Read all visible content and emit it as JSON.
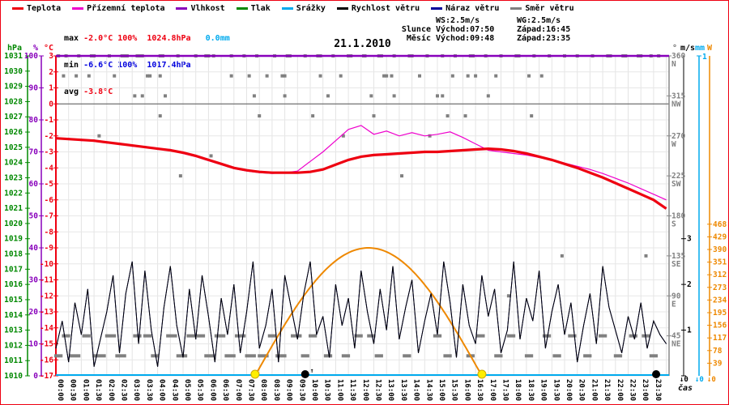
{
  "title": "21.1.2010",
  "legend": [
    {
      "label": "Teplota",
      "color": "#ee0011"
    },
    {
      "label": "Přízemní teplota",
      "color": "#ee00cc"
    },
    {
      "label": "Vlhkost",
      "color": "#8800bb"
    },
    {
      "label": "Tlak",
      "color": "#008800"
    },
    {
      "label": "Srážky",
      "color": "#00aaee"
    },
    {
      "label": "Rychlost větru",
      "color": "#000000"
    },
    {
      "label": "Náraz větru",
      "color": "#000099"
    },
    {
      "label": "Směr větru",
      "color": "#808080"
    }
  ],
  "stats": {
    "max": {
      "label": "max",
      "temp": "-2.0°C",
      "humidity": "100%",
      "pressure": "1024.8hPa",
      "precip": "0.0mm"
    },
    "min": {
      "label": "min",
      "temp": "-6.6°C",
      "humidity": "100%",
      "pressure": "1017.4hPa"
    },
    "avg": {
      "label": "avg",
      "temp": "-3.8°C"
    },
    "wind": {
      "ws": "WS:2.5m/s",
      "wg": "WG:2.5m/s"
    },
    "sun": {
      "label": "Slunce",
      "rise": "Východ:07:50",
      "set": "Západ:16:45"
    },
    "moon": {
      "label": "Měsíc",
      "rise": "Východ:09:48",
      "set": "Západ:23:35"
    }
  },
  "axes": {
    "hpa": {
      "unit": "hPa",
      "color": "#008800",
      "ticks": [
        1031,
        1030,
        1029,
        1028,
        1027,
        1026,
        1025,
        1024,
        1023,
        1022,
        1021,
        1020,
        1019,
        1018,
        1017,
        1016,
        1015,
        1014,
        1013,
        1012,
        1011,
        1010
      ]
    },
    "pct": {
      "unit": "%",
      "color": "#8800bb",
      "ticks": [
        100,
        90,
        80,
        70,
        60,
        50,
        40,
        30,
        20,
        10,
        0
      ]
    },
    "degc": {
      "unit": "°C",
      "color": "#ee0011",
      "ticks": [
        3,
        2,
        1,
        0,
        -1,
        -2,
        -3,
        -4,
        -5,
        -6,
        -7,
        -8,
        -9,
        -10,
        -11,
        -12,
        -13,
        -14,
        -15,
        -16,
        -17
      ]
    },
    "dir": {
      "unit": "°",
      "color": "#808080",
      "ticks": [
        [
          360,
          "N"
        ],
        [
          315,
          "NW"
        ],
        [
          270,
          "W"
        ],
        [
          225,
          "SW"
        ],
        [
          180,
          "S"
        ],
        [
          135,
          "SE"
        ],
        [
          90,
          "E"
        ],
        [
          45,
          "NE"
        ]
      ]
    },
    "ms": {
      "unit": "m/s",
      "color": "#000000",
      "ticks": [
        3,
        2,
        1,
        0
      ]
    },
    "mm": {
      "unit": "mm",
      "color": "#00aaee",
      "ticks": [
        1,
        0
      ]
    },
    "watt": {
      "unit": "W",
      "color": "#ee8800",
      "ticks": [
        468,
        429,
        390,
        351,
        312,
        273,
        234,
        195,
        156,
        117,
        78,
        39,
        0
      ]
    }
  },
  "bottom": {
    "axis_label": "čas",
    "zero_marker": "↓0",
    "moonrise_arrow": "↑",
    "time_labels": [
      "00:00",
      "00:30",
      "01:00",
      "01:30",
      "02:00",
      "02:30",
      "03:00",
      "03:30",
      "04:00",
      "04:30",
      "05:00",
      "05:30",
      "06:00",
      "06:30",
      "07:00",
      "07:30",
      "08:00",
      "08:30",
      "09:00",
      "09:30",
      "10:00",
      "10:30",
      "11:00",
      "11:30",
      "12:00",
      "12:30",
      "13:00",
      "13:30",
      "14:00",
      "14:30",
      "15:00",
      "15:30",
      "16:00",
      "16:30",
      "17:00",
      "17:30",
      "18:00",
      "18:30",
      "19:00",
      "19:30",
      "20:00",
      "20:30",
      "21:00",
      "21:30",
      "22:00",
      "22:30",
      "23:00",
      "23:30"
    ]
  },
  "chart_data": {
    "type": "line",
    "title": "21.1.2010",
    "x_unit": "hours",
    "x_step_h": 0.5,
    "temperature_c": [
      -2.15,
      -2.2,
      -2.25,
      -2.3,
      -2.4,
      -2.5,
      -2.6,
      -2.7,
      -2.8,
      -2.9,
      -3.05,
      -3.25,
      -3.5,
      -3.75,
      -4.0,
      -4.15,
      -4.25,
      -4.3,
      -4.3,
      -4.3,
      -4.25,
      -4.1,
      -3.8,
      -3.5,
      -3.3,
      -3.2,
      -3.15,
      -3.1,
      -3.05,
      -3.0,
      -3.0,
      -2.95,
      -2.9,
      -2.85,
      -2.8,
      -2.85,
      -2.95,
      -3.1,
      -3.3,
      -3.5,
      -3.75,
      -4.0,
      -4.3,
      -4.6,
      -4.95,
      -5.3,
      -5.65,
      -6.0,
      -6.55
    ],
    "ground_temperature_c": [
      -2.2,
      -2.15,
      -2.3,
      -2.25,
      -2.45,
      -2.45,
      -2.65,
      -2.65,
      -2.85,
      -2.85,
      -3.1,
      -3.3,
      -3.55,
      -3.8,
      -4.05,
      -4.2,
      -4.3,
      -4.35,
      -4.3,
      -4.2,
      -3.6,
      -3.0,
      -2.3,
      -1.6,
      -1.35,
      -1.9,
      -1.7,
      -2.0,
      -1.8,
      -2.0,
      -1.9,
      -1.75,
      -2.1,
      -2.5,
      -2.9,
      -3.0,
      -3.1,
      -3.2,
      -3.35,
      -3.5,
      -3.7,
      -3.9,
      -4.1,
      -4.35,
      -4.65,
      -4.95,
      -5.3,
      -5.65,
      -6.0
    ],
    "humidity_pct_constant": 100,
    "precip_mm_constant": 0,
    "pressure_hpa": {
      "max": 1024.8,
      "min": 1017.4
    },
    "wind_speed_ms_step_h": 0.25,
    "wind_speed_ms": [
      0.6,
      1.2,
      0.3,
      1.6,
      0.9,
      1.9,
      0.2,
      0.8,
      1.4,
      2.2,
      0.5,
      1.8,
      2.5,
      0.7,
      2.3,
      1.0,
      0.2,
      1.5,
      2.4,
      1.1,
      0.4,
      1.9,
      0.8,
      2.2,
      1.3,
      0.3,
      1.7,
      0.9,
      2.0,
      0.5,
      1.4,
      2.5,
      0.6,
      1.1,
      1.9,
      0.3,
      2.2,
      1.5,
      0.8,
      1.8,
      2.5,
      0.9,
      1.3,
      0.4,
      2.0,
      1.1,
      1.7,
      0.6,
      2.3,
      1.4,
      0.7,
      1.9,
      1.0,
      2.4,
      0.8,
      1.5,
      2.1,
      0.5,
      1.2,
      1.8,
      0.9,
      2.5,
      1.6,
      0.4,
      2.0,
      1.1,
      0.7,
      2.2,
      1.3,
      1.9,
      0.5,
      1.0,
      2.5,
      0.8,
      1.7,
      1.2,
      2.3,
      0.6,
      1.4,
      2.0,
      0.9,
      1.6,
      0.3,
      1.1,
      1.8,
      0.7,
      2.4,
      1.5,
      1.0,
      0.5,
      1.3,
      0.8,
      1.6,
      0.6,
      1.2,
      0.9,
      0.7
    ],
    "solar_radiation": {
      "start_h": 7.83,
      "end_h": 16.75,
      "peak_w": 395
    },
    "sun": {
      "rise_h": 7.83,
      "set_h": 16.75,
      "color": "#ffee00"
    },
    "moon": {
      "rise_h": 9.8,
      "set_h": 23.6,
      "color": "#000000"
    },
    "wind_dir_points_deg": {
      "360": [
        0.1,
        0.4,
        0.9,
        1.4,
        1.5,
        2.1,
        2.6,
        2.7,
        2.8,
        3.2,
        3.3,
        3.4,
        4.1,
        4.2,
        4.8,
        5.5,
        5.9,
        6.0,
        6.2,
        6.9,
        7.4,
        7.9,
        8.6,
        9.1,
        9.2,
        9.8,
        10.3,
        10.4,
        10.9,
        11.5,
        11.6,
        12.1,
        12.15,
        12.7,
        12.8,
        13.3,
        13.9,
        14.0,
        14.6,
        15.2,
        15.7,
        16.3,
        16.4,
        16.9,
        17.5,
        18.1,
        18.2,
        18.8,
        19.4,
        20.0,
        20.5,
        21.1,
        21.7,
        21.8,
        22.3,
        22.4,
        22.9,
        23.0,
        23.4,
        23.7
      ],
      "337.5": [
        0.3,
        0.8,
        1.3,
        2.3,
        3.6,
        3.7,
        4.1,
        6.9,
        7.6,
        8.3,
        8.9,
        9.0,
        10.4,
        11.2,
        12.9,
        13.0,
        13.2,
        14.3,
        15.6,
        16.2,
        16.5,
        17.3,
        18.6,
        19.1
      ],
      "315": [
        3.1,
        3.4,
        4.3,
        7.8,
        9.0,
        10.7,
        12.4,
        13.3,
        15.0,
        15.2,
        17.0
      ],
      "292.5": [
        4.1,
        8.0,
        10.1,
        12.5,
        15.4,
        16.1,
        18.7
      ],
      "270": [
        1.7,
        11.3,
        14.7
      ],
      "247.5": [
        6.1
      ],
      "225": [
        4.9,
        13.6
      ],
      "135": [
        19.9,
        23.2
      ],
      "90": [
        17.8
      ]
    },
    "wind_dir_dashes_deg": {
      "45": [
        [
          0.3,
          0.5
        ],
        [
          1.1,
          1.3
        ],
        [
          2.0,
          2.3
        ],
        [
          3.1,
          3.3
        ],
        [
          3.5,
          3.7
        ],
        [
          4.4,
          4.7
        ],
        [
          5.2,
          5.4
        ],
        [
          5.6,
          5.8
        ],
        [
          6.3,
          6.6
        ],
        [
          7.1,
          7.4
        ],
        [
          8.4,
          8.6
        ],
        [
          9.3,
          9.6
        ],
        [
          10.0,
          10.2
        ],
        [
          11.8,
          12.0
        ],
        [
          12.3,
          12.5
        ],
        [
          14.9,
          15.1
        ],
        [
          16.6,
          16.8
        ],
        [
          17.8,
          18.0
        ],
        [
          19.2,
          19.4
        ],
        [
          20.2,
          20.4
        ],
        [
          21.4,
          21.6
        ],
        [
          22.6,
          22.8
        ],
        [
          23.1,
          23.3
        ]
      ],
      "22.5": [
        [
          0.0,
          0.2
        ],
        [
          0.6,
          0.9
        ],
        [
          1.5,
          1.9
        ],
        [
          2.4,
          2.7
        ],
        [
          3.8,
          4.0
        ],
        [
          4.8,
          5.1
        ],
        [
          5.9,
          6.2
        ],
        [
          6.7,
          7.0
        ],
        [
          7.5,
          7.8
        ],
        [
          8.0,
          8.3
        ],
        [
          8.7,
          9.0
        ],
        [
          9.7,
          9.9
        ],
        [
          10.6,
          10.8
        ],
        [
          11.3,
          11.5
        ],
        [
          12.6,
          12.8
        ],
        [
          13.7,
          13.9
        ],
        [
          15.3,
          15.5
        ],
        [
          16.2,
          16.4
        ],
        [
          17.3,
          17.5
        ],
        [
          18.5,
          18.7
        ],
        [
          19.6,
          19.8
        ],
        [
          20.8,
          21.0
        ],
        [
          22.0,
          22.2
        ],
        [
          23.4,
          23.6
        ]
      ]
    }
  }
}
